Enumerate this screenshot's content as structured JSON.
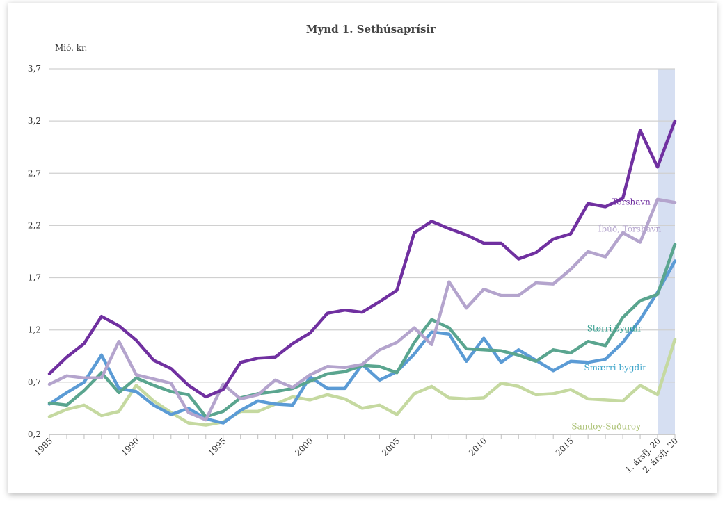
{
  "chart_data": {
    "type": "line",
    "title": "Mynd 1. Sethúsaprísir",
    "ylabel": "Mió. kr.",
    "xlabel": "",
    "ylim": [
      0.2,
      3.7
    ],
    "yticks": [
      "3,7",
      "3,2",
      "2,7",
      "2,2",
      "1,7",
      "1,2",
      "0,7",
      "0,2"
    ],
    "ytick_values": [
      3.7,
      3.2,
      2.7,
      2.2,
      1.7,
      1.2,
      0.7,
      0.2
    ],
    "xtick_labels": [
      "1985",
      "1990",
      "1995",
      "2000",
      "2005",
      "2010",
      "2015",
      "1. ársfj. 20",
      "2. ársfj. 20"
    ],
    "grid": true,
    "highlight_region": {
      "from": "1. ársfj. 20",
      "to": "2. ársfj. 20",
      "color": "#d6dff2"
    },
    "x": [
      "1985",
      "1986",
      "1987",
      "1988",
      "1989",
      "1990",
      "1991",
      "1992",
      "1993",
      "1994",
      "1995",
      "1996",
      "1997",
      "1998",
      "1999",
      "2000",
      "2001",
      "2002",
      "2003",
      "2004",
      "2005",
      "2006",
      "2007",
      "2008",
      "2009",
      "2010",
      "2011",
      "2012",
      "2013",
      "2014",
      "2015",
      "2016",
      "2017",
      "2018",
      "2019",
      "1. ársfj. 20",
      "2. ársfj. 20"
    ],
    "series": [
      {
        "name": "Tórshavn",
        "color": "#7030a0",
        "values": [
          0.78,
          0.94,
          1.07,
          1.33,
          1.24,
          1.1,
          0.91,
          0.83,
          0.67,
          0.56,
          0.63,
          0.89,
          0.93,
          0.94,
          1.07,
          1.17,
          1.36,
          1.39,
          1.37,
          1.47,
          1.58,
          2.13,
          2.24,
          2.17,
          2.11,
          2.03,
          2.03,
          1.88,
          1.94,
          2.07,
          2.12,
          2.41,
          2.38,
          2.46,
          3.11,
          2.76,
          3.2
        ]
      },
      {
        "name": "Íbúð, Tórshavn",
        "color": "#b4a4cd",
        "values": [
          0.68,
          0.76,
          0.74,
          0.74,
          1.09,
          0.77,
          0.73,
          0.69,
          0.41,
          0.34,
          0.68,
          0.54,
          0.58,
          0.72,
          0.65,
          0.77,
          0.85,
          0.84,
          0.87,
          1.01,
          1.08,
          1.22,
          1.06,
          1.66,
          1.41,
          1.59,
          1.53,
          1.53,
          1.65,
          1.64,
          1.78,
          1.95,
          1.9,
          2.13,
          2.04,
          2.45,
          2.42
        ]
      },
      {
        "name": "Størri bygdir",
        "color": "#5aa58f",
        "values": [
          0.5,
          0.48,
          0.62,
          0.79,
          0.6,
          0.74,
          0.67,
          0.61,
          0.58,
          0.37,
          0.42,
          0.55,
          0.59,
          0.61,
          0.64,
          0.71,
          0.78,
          0.8,
          0.86,
          0.85,
          0.79,
          1.08,
          1.3,
          1.22,
          1.02,
          1.01,
          1.0,
          0.96,
          0.9,
          1.01,
          0.98,
          1.09,
          1.05,
          1.32,
          1.48,
          1.54,
          2.02
        ]
      },
      {
        "name": "Smærri bygdir",
        "color": "#5b9bd5",
        "values": [
          0.49,
          0.6,
          0.7,
          0.96,
          0.64,
          0.61,
          0.48,
          0.39,
          0.45,
          0.35,
          0.31,
          0.43,
          0.52,
          0.49,
          0.48,
          0.75,
          0.64,
          0.64,
          0.87,
          0.72,
          0.8,
          0.97,
          1.18,
          1.16,
          0.9,
          1.12,
          0.89,
          1.01,
          0.91,
          0.81,
          0.9,
          0.89,
          0.92,
          1.08,
          1.3,
          1.56,
          1.86
        ]
      },
      {
        "name": "Sandoy-Suðuroy",
        "color": "#c5d9a0",
        "values": [
          0.37,
          0.44,
          0.48,
          0.38,
          0.42,
          0.67,
          0.52,
          0.41,
          0.31,
          0.29,
          0.32,
          0.42,
          0.42,
          0.49,
          0.56,
          0.53,
          0.58,
          0.54,
          0.45,
          0.48,
          0.39,
          0.59,
          0.66,
          0.55,
          0.54,
          0.55,
          0.69,
          0.66,
          0.58,
          0.59,
          0.63,
          0.54,
          0.53,
          0.52,
          0.67,
          0.58,
          1.11
        ]
      }
    ]
  }
}
